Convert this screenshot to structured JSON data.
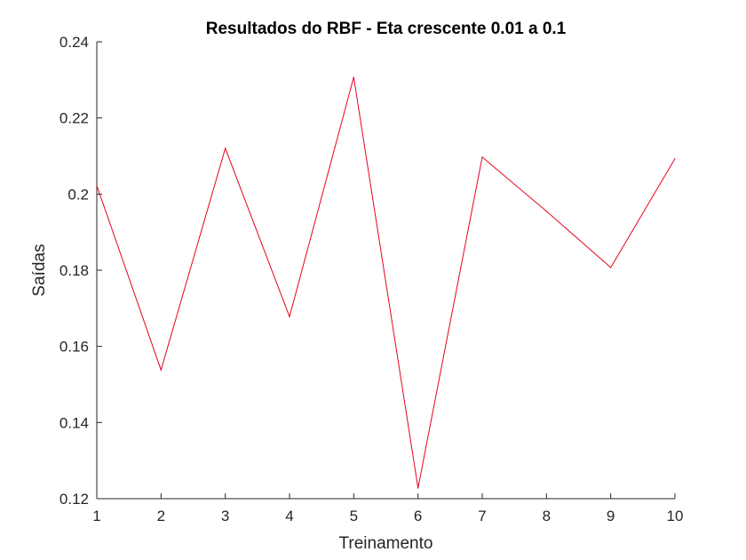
{
  "chart_data": {
    "type": "line",
    "title": "Resultados do RBF - Eta crescente 0.01 a 0.1",
    "xlabel": "Treinamento",
    "ylabel": "Saídas",
    "x": [
      1,
      2,
      3,
      4,
      5,
      6,
      7,
      8,
      9,
      10
    ],
    "xlim": [
      1,
      10
    ],
    "ylim": [
      0.12,
      0.24
    ],
    "x_ticks": [
      1,
      2,
      3,
      4,
      5,
      6,
      7,
      8,
      9,
      10
    ],
    "x_tick_labels": [
      "1",
      "2",
      "3",
      "4",
      "5",
      "6",
      "7",
      "8",
      "9",
      "10"
    ],
    "y_ticks": [
      0.12,
      0.14,
      0.16,
      0.18,
      0.2,
      0.22,
      0.24
    ],
    "y_tick_labels": [
      "0.12",
      "0.14",
      "0.16",
      "0.18",
      "0.2",
      "0.22",
      "0.24"
    ],
    "grid": false,
    "series": [
      {
        "name": "Saídas",
        "color": "#e8001e",
        "values": [
          0.2022,
          0.1538,
          0.212,
          0.1678,
          0.2307,
          0.1228,
          0.2097,
          0.1955,
          0.1807,
          0.2093
        ]
      }
    ],
    "axis_color": "#262626"
  }
}
